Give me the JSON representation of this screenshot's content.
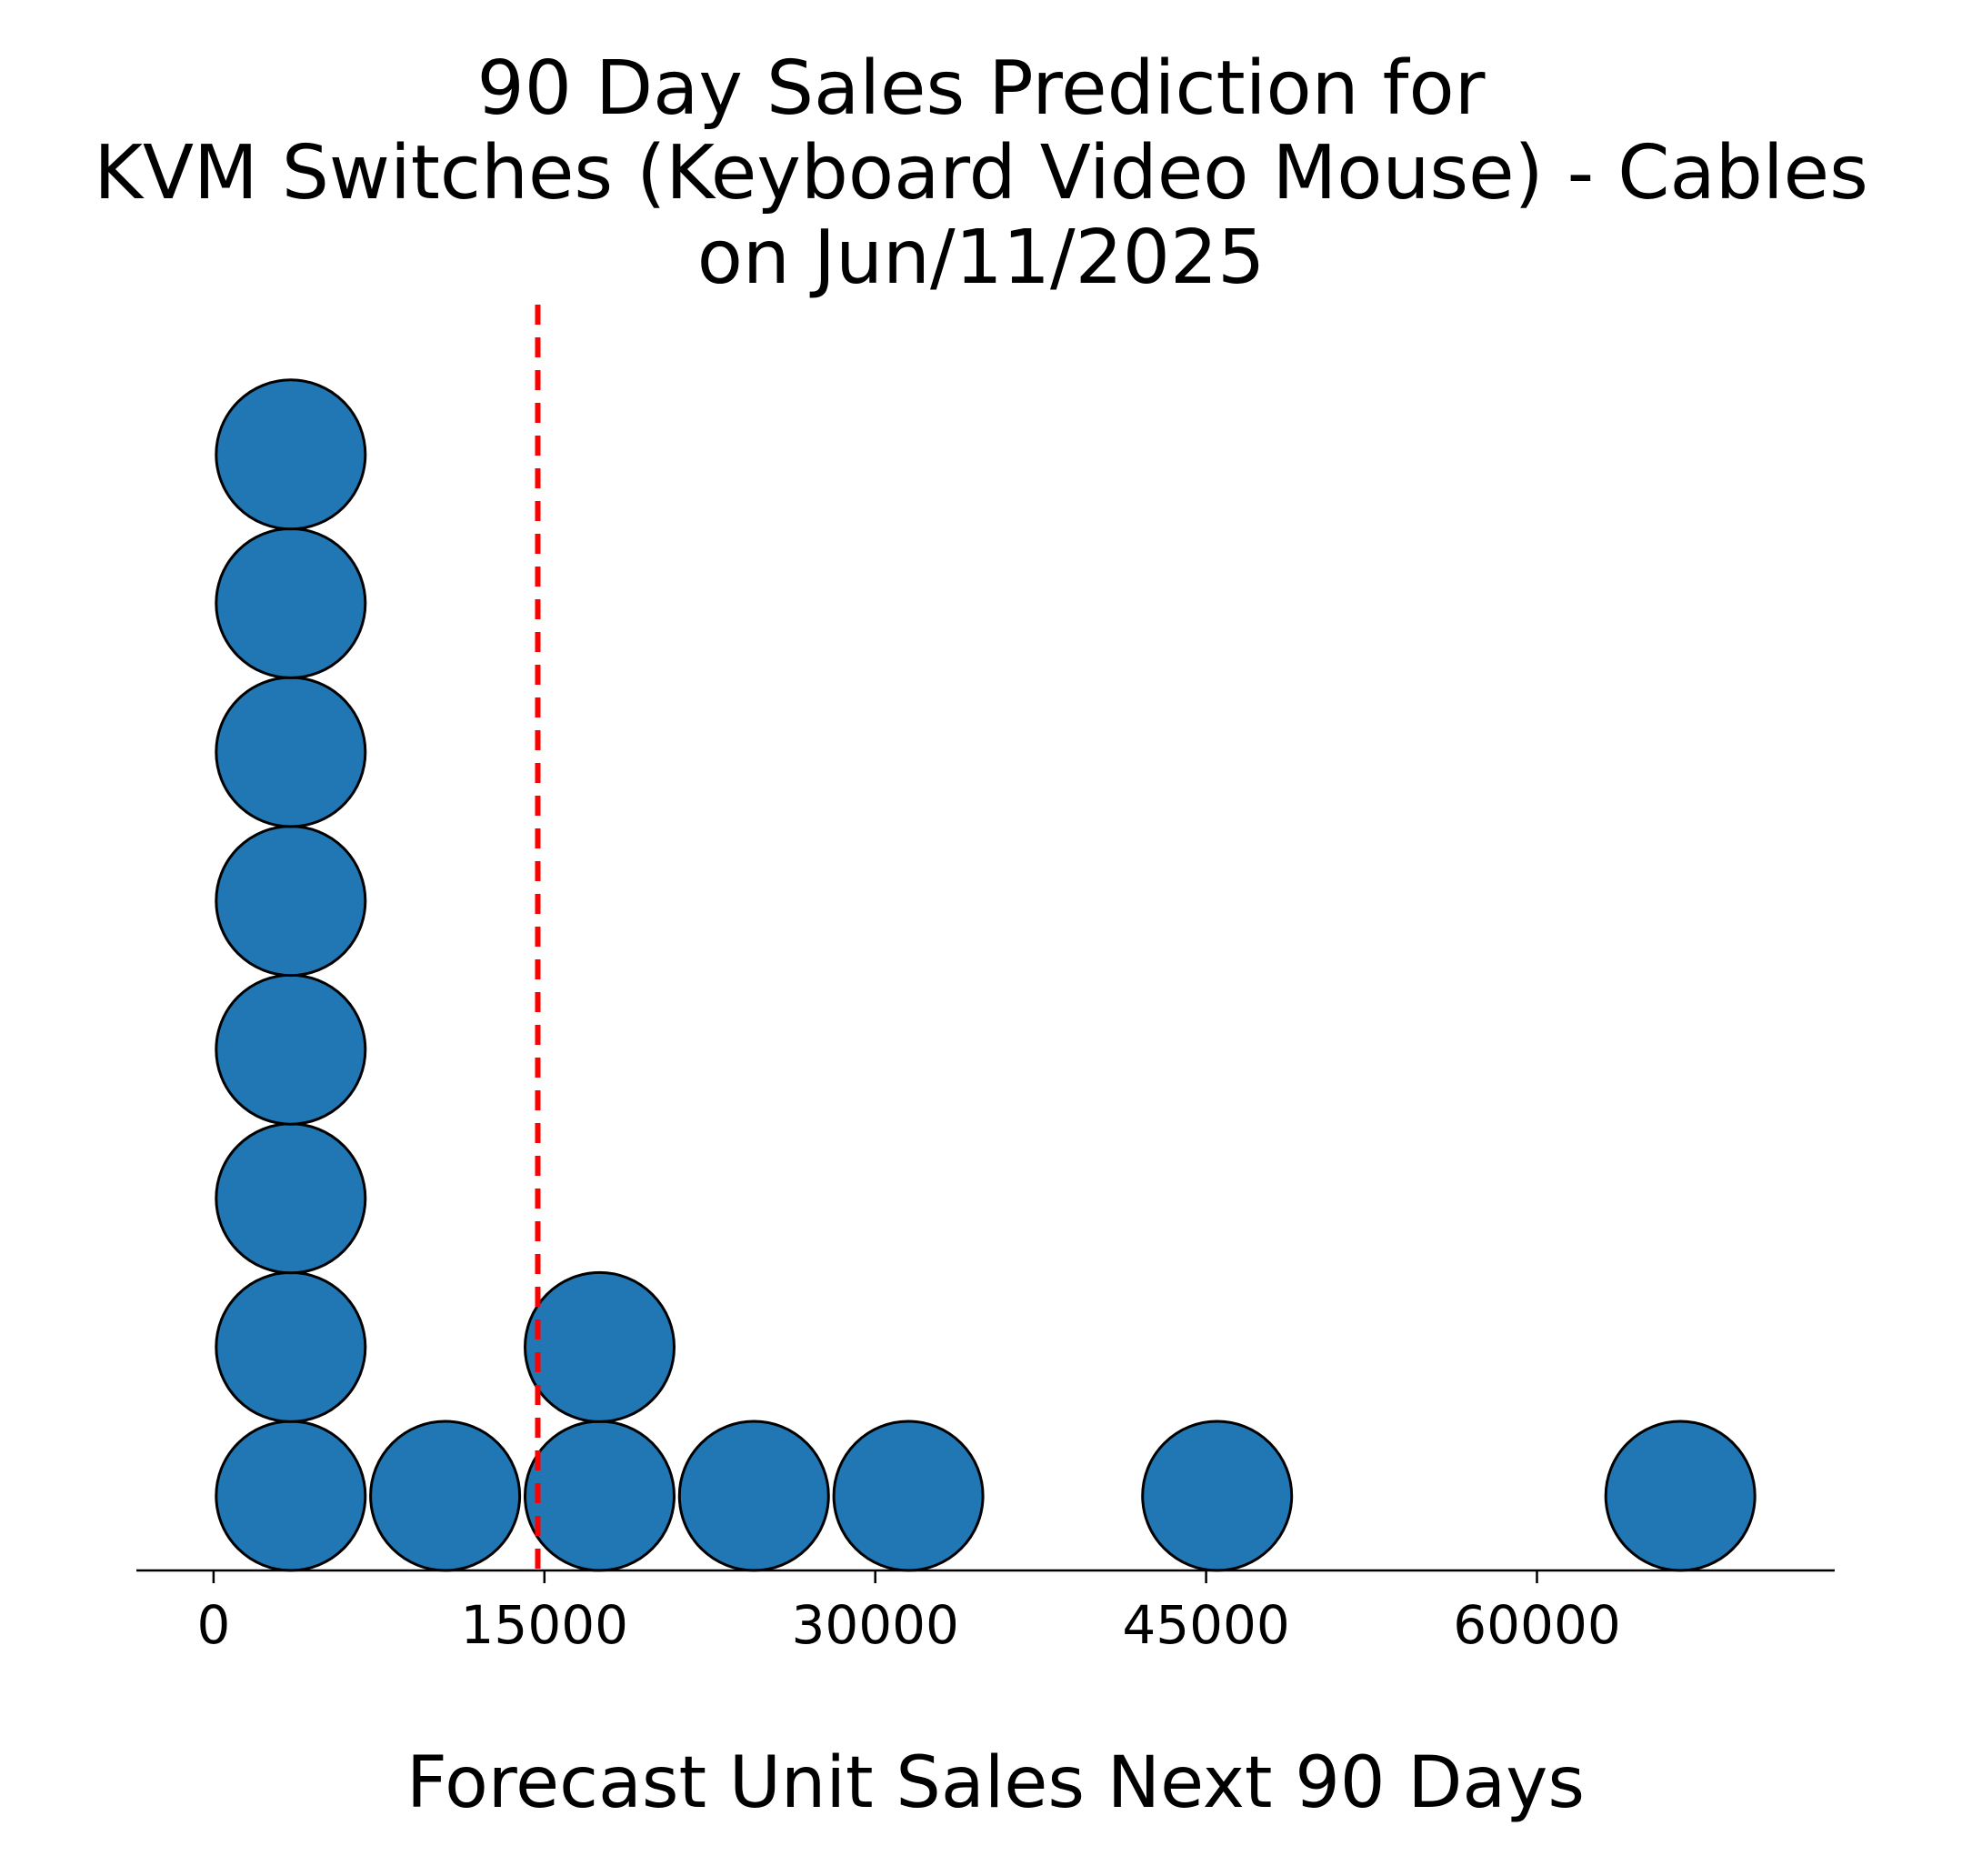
{
  "chart_data": {
    "type": "scatter",
    "title_lines": [
      "90 Day Sales Prediction for",
      "KVM Switches (Keyboard Video Mouse) - Cables",
      "on Jun/11/2025"
    ],
    "xlabel": "Forecast Unit Sales Next 90 Days",
    "ylabel": "",
    "xlim": [
      -3500,
      73500
    ],
    "xticks": [
      0,
      15000,
      30000,
      45000,
      60000
    ],
    "xtick_labels": [
      "0",
      "15000",
      "30000",
      "45000",
      "60000"
    ],
    "grid": false,
    "points": [
      {
        "x": 3500,
        "stack": 1
      },
      {
        "x": 3500,
        "stack": 2
      },
      {
        "x": 3500,
        "stack": 3
      },
      {
        "x": 3500,
        "stack": 4
      },
      {
        "x": 3500,
        "stack": 5
      },
      {
        "x": 3500,
        "stack": 6
      },
      {
        "x": 3500,
        "stack": 7
      },
      {
        "x": 3500,
        "stack": 8
      },
      {
        "x": 10500,
        "stack": 1
      },
      {
        "x": 17500,
        "stack": 1
      },
      {
        "x": 17500,
        "stack": 2
      },
      {
        "x": 24500,
        "stack": 1
      },
      {
        "x": 31500,
        "stack": 1
      },
      {
        "x": 45500,
        "stack": 1
      },
      {
        "x": 66500,
        "stack": 1
      }
    ],
    "reference_line": {
      "x": 14700,
      "style": "dashed"
    },
    "colors": {
      "marker_fill": "#2077b4",
      "marker_edge": "#000000",
      "reference_line": "#ff0000",
      "axis": "#000000"
    }
  }
}
